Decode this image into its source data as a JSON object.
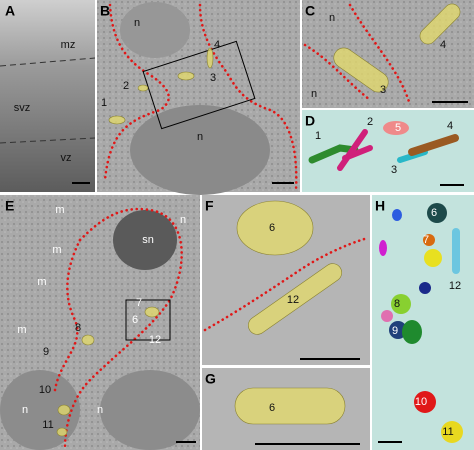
{
  "panels": [
    {
      "letter": "A",
      "labels": [
        "mz",
        "svz",
        "vz"
      ]
    },
    {
      "letter": "B",
      "labels": [
        "n",
        "n",
        "1",
        "2",
        "3",
        "4"
      ]
    },
    {
      "letter": "C",
      "labels": [
        "n",
        "n",
        "3",
        "4"
      ]
    },
    {
      "letter": "D",
      "labels": [
        "1",
        "2",
        "3",
        "4",
        "5"
      ]
    },
    {
      "letter": "E",
      "labels": [
        "m",
        "m",
        "m",
        "m",
        "sn",
        "n",
        "n",
        "n",
        "6",
        "7",
        "8",
        "9",
        "10",
        "11",
        "12"
      ]
    },
    {
      "letter": "F",
      "labels": [
        "6",
        "12"
      ]
    },
    {
      "letter": "G",
      "labels": [
        "6"
      ]
    },
    {
      "letter": "H",
      "labels": [
        "6",
        "7",
        "8",
        "9",
        "10",
        "11",
        "12"
      ]
    }
  ]
}
